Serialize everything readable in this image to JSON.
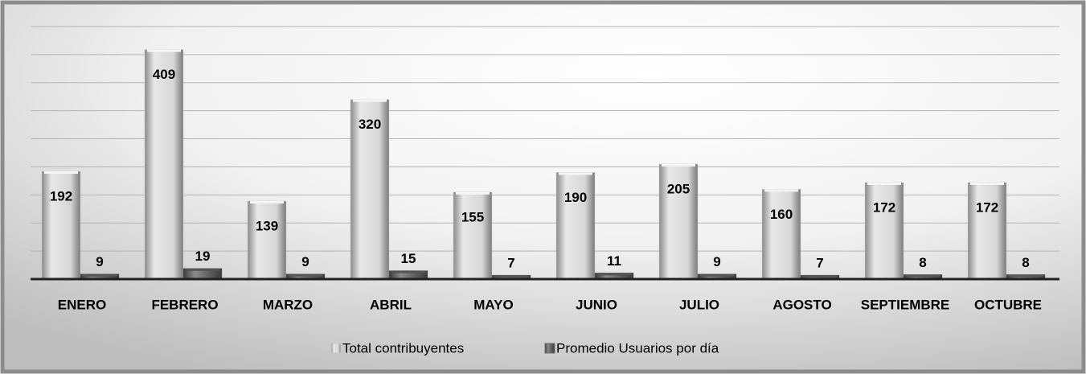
{
  "chart_data": {
    "type": "bar",
    "categories": [
      "ENERO",
      "FEBRERO",
      "MARZO",
      "ABRIL",
      "MAYO",
      "JUNIO",
      "JULIO",
      "AGOSTO",
      "SEPTIEMBRE",
      "OCTUBRE"
    ],
    "series": [
      {
        "name": "Total contribuyentes",
        "color": "#c8c8c8",
        "values": [
          192,
          409,
          139,
          320,
          155,
          190,
          205,
          160,
          172,
          172
        ]
      },
      {
        "name": "Promedio Usuarios por día",
        "color": "#6e6e6e",
        "values": [
          9,
          19,
          9,
          15,
          7,
          11,
          9,
          7,
          8,
          8
        ]
      }
    ],
    "ylim": [
      0,
      450
    ],
    "yticks": [
      0,
      50,
      100,
      150,
      200,
      250,
      300,
      350,
      400,
      450
    ],
    "grid": true,
    "legend": "bottom"
  }
}
